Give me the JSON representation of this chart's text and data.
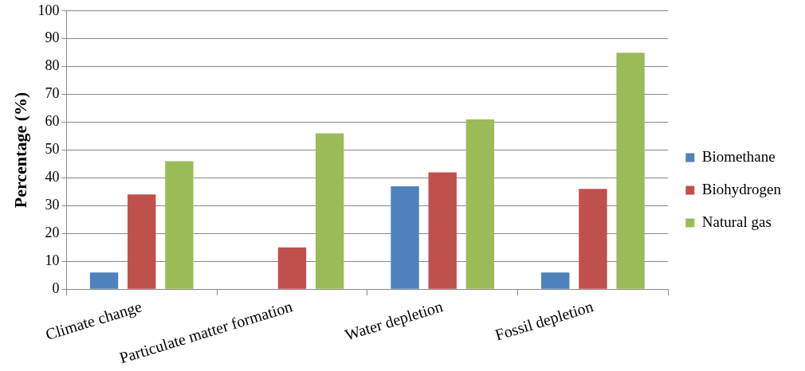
{
  "chart_data": {
    "type": "bar",
    "ylabel": "Percentage (%)",
    "categories": [
      "Climate change",
      "Particulate matter formation",
      "Water depletion",
      "Fossil depletion"
    ],
    "series": [
      {
        "name": "Biomethane",
        "color": "#4f81bd",
        "values": [
          6,
          0,
          37,
          6
        ]
      },
      {
        "name": "Biohydrogen",
        "color": "#c0504d",
        "values": [
          34,
          15,
          42,
          36
        ]
      },
      {
        "name": "Natural gas",
        "color": "#9bbb59",
        "values": [
          46,
          56,
          61,
          85
        ]
      }
    ],
    "ylim": [
      0,
      100
    ],
    "yticks": [
      0,
      10,
      20,
      30,
      40,
      50,
      60,
      70,
      80,
      90,
      100
    ],
    "grid": "y",
    "legend": "right"
  }
}
